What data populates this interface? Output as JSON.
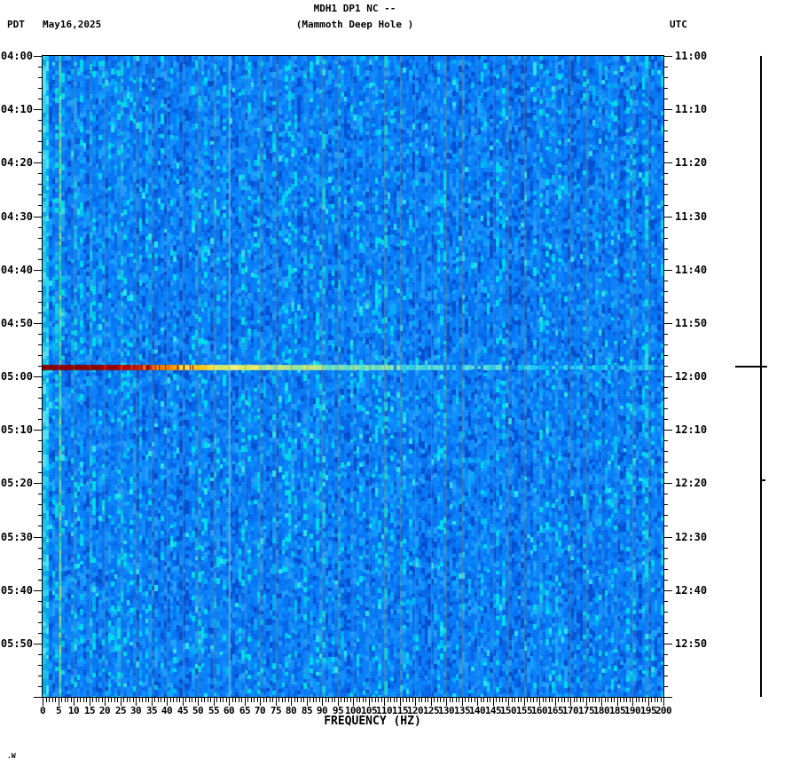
{
  "header": {
    "title_line1": "MDH1 DP1 NC --",
    "title_line2": "(Mammoth Deep Hole )",
    "timezone_left": "PDT",
    "date": "May16,2025",
    "timezone_right": "UTC"
  },
  "footer": {
    "mark": ".W"
  },
  "chart_data": {
    "type": "heatmap",
    "title": "MDH1 DP1 NC -- (Mammoth Deep Hole )",
    "xlabel": "FREQUENCY (HZ)",
    "x_range_hz": [
      0,
      200
    ],
    "x_major_tick_step_hz": 5,
    "x_minor_tick_step_hz": 1,
    "duration_minutes": 120,
    "minor_tick_minutes": 2,
    "major_tick_minutes": 10,
    "left_axis_timezone": "PDT",
    "right_axis_timezone": "UTC",
    "left_tick_labels": [
      "04:00",
      "04:10",
      "04:20",
      "04:30",
      "04:40",
      "04:50",
      "05:00",
      "05:10",
      "05:20",
      "05:30",
      "05:40",
      "05:50"
    ],
    "right_tick_labels": [
      "11:00",
      "11:10",
      "11:20",
      "11:30",
      "11:40",
      "11:50",
      "12:00",
      "12:10",
      "12:20",
      "12:30",
      "12:40",
      "12:50"
    ],
    "grid": "vertical gridlines every 5 Hz",
    "event": {
      "time_left": "04:58",
      "time_right": "11:58",
      "minutes_after_start": 58.2,
      "extent_hz": [
        0,
        200
      ],
      "description": "broadband high-amplitude event; strongest (dark red) below 20 Hz, fading through orange/yellow to cyan at high frequency"
    },
    "persistent_features": {
      "bright_low_band_hz": [
        0,
        1.5
      ],
      "narrowband_line_hz": 6,
      "powerline_hz": 60
    },
    "colors": {
      "background_blues": [
        "#0550d0",
        "#0765e6",
        "#0875f2",
        "#0a82fa",
        "#1490fb",
        "#22a0fd",
        "#00aefb",
        "#00c2f0",
        "#00dcec"
      ],
      "background_weights": [
        6,
        14,
        22,
        24,
        14,
        9,
        6,
        3,
        2
      ],
      "low_freq_band": [
        "#18c2ee",
        "#2ad4f4",
        "#00a8e8",
        "#55e0f5"
      ],
      "line_6hz": [
        "#2ee0a8",
        "#48e8b0",
        "#1ed498",
        "#70eec4",
        "#a8ec7c"
      ],
      "line_60hz": [
        "#8ae0dc",
        "#9ce8e0",
        "#78d8d4"
      ],
      "gridline": "#7d8678",
      "axis": "#000000",
      "event_bands": [
        {
          "upto_hz": 18,
          "colors": [
            "#8b0000",
            "#900000",
            "#860000"
          ]
        },
        {
          "upto_hz": 24,
          "colors": [
            "#980000",
            "#a60000",
            "#8b0000",
            "#b20000"
          ]
        },
        {
          "upto_hz": 30,
          "colors": [
            "#c00000",
            "#d41400",
            "#a80000",
            "#e63000"
          ]
        },
        {
          "upto_hz": 36,
          "colors": [
            "#e84400",
            "#f06000",
            "#cc2200",
            "#ff7700"
          ]
        },
        {
          "upto_hz": 44,
          "colors": [
            "#ff8c00",
            "#ffa500",
            "#f07800",
            "#ffc000"
          ]
        },
        {
          "upto_hz": 55,
          "colors": [
            "#ffd000",
            "#ffe23c",
            "#ffc428",
            "#f5e050"
          ]
        },
        {
          "upto_hz": 70,
          "colors": [
            "#f0ee60",
            "#e4ee6e",
            "#d8ea64",
            "#eef080"
          ]
        },
        {
          "upto_hz": 90,
          "colors": [
            "#c4ec7c",
            "#aae890",
            "#bce488",
            "#98e49c"
          ]
        },
        {
          "upto_hz": 115,
          "colors": [
            "#7ee4b4",
            "#66e0c0",
            "#8ce8ac",
            "#58dcc8"
          ]
        },
        {
          "upto_hz": 150,
          "colors": [
            "#48d8dc",
            "#38d0e8",
            "#60e0d4",
            "#2cc8f0"
          ]
        },
        {
          "upto_hz": 201,
          "colors": [
            "#20c4f4",
            "#00bcf8",
            "#38d4f0",
            "#10a8f4"
          ]
        }
      ]
    }
  }
}
